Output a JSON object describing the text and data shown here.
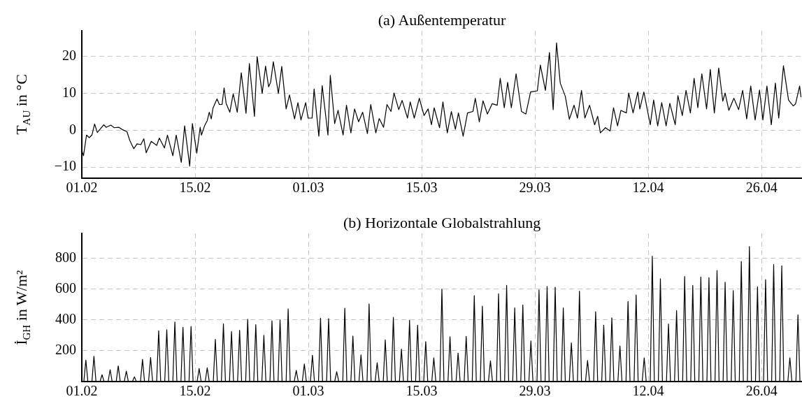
{
  "chart_data": [
    {
      "type": "line",
      "title": "(a) Außentemperatur",
      "ylabel": "T$_{AU}$ in °C",
      "grid": true,
      "xlim": [
        "--02-01",
        "--05-01"
      ],
      "xticks": [
        {
          "value": "--02-01",
          "label": "01.02"
        },
        {
          "value": "--02-15",
          "label": "15.02"
        },
        {
          "value": "--03-01",
          "label": "01.03"
        },
        {
          "value": "--03-15",
          "label": "15.03"
        },
        {
          "value": "--03-29",
          "label": "29.03"
        },
        {
          "value": "--04-12",
          "label": "12.04"
        },
        {
          "value": "--04-26",
          "label": "26.04"
        }
      ],
      "ylim": [
        -13,
        27
      ],
      "yticks": [
        {
          "value": -10,
          "label": "−10"
        },
        0,
        10,
        20
      ],
      "x": [
        "--02-01T00:00",
        "--02-01T05:00",
        "--02-01T14:00",
        "--02-01T22:00",
        "--02-02T06:00",
        "--02-02T14:00",
        "--02-02T22:00",
        "--02-03T17:00",
        "--02-04T00:00",
        "--02-04T14:00",
        "--02-05T00:00",
        "--02-05T14:00",
        "--02-06T02:00",
        "--02-06T14:00",
        "--02-06T22:00",
        "--02-07T10:00",
        "--02-07T20:00",
        "--02-08T07:00",
        "--02-08T16:00",
        "--02-08T23:00",
        "--02-09T14:00",
        "--02-10T06:00",
        "--02-10T14:00",
        "--02-11T05:00",
        "--02-11T14:00",
        "--02-12T06:00",
        "--02-12T16:00",
        "--02-13T07:00",
        "--02-13T17:00",
        "--02-14T08:00",
        "--02-14T16:00",
        "--02-15T05:00",
        "--02-15T15:00",
        "--02-15T19:00",
        "--02-16T04:00",
        "--02-16T12:00",
        "--02-16T18:00",
        "--02-17T00:00",
        "--02-17T05:00",
        "--02-17T17:00",
        "--02-18T00:00",
        "--02-18T08:00",
        "--02-18T14:00",
        "--02-18T20:00",
        "--02-19T07:00",
        "--02-19T17:00",
        "--02-20T05:00",
        "--02-20T17:00",
        "--02-21T07:00",
        "--02-21T17:00",
        "--02-22T08:00",
        "--02-22T16:00",
        "--02-23T07:00",
        "--02-23T17:00",
        "--02-24T02:00",
        "--02-24T08:00",
        "--02-24T16:00",
        "--02-25T07:00",
        "--02-25T17:00",
        "--02-26T06:00",
        "--02-26T16:00",
        "--02-27T07:00",
        "--02-27T17:00",
        "--02-28T02:00",
        "--02-28T16:00",
        "--02-28T23:00",
        "--03-01T11:00",
        "--03-01T17:00",
        "--03-02T07:00",
        "--03-02T17:00",
        "--03-03T10:00",
        "--03-03T17:00",
        "--03-04T06:00",
        "--03-04T16:00",
        "--03-05T07:00",
        "--03-05T17:00",
        "--03-06T06:00",
        "--03-06T17:00",
        "--03-07T05:00",
        "--03-07T17:00",
        "--03-08T07:00",
        "--03-08T17:00",
        "--03-09T08:00",
        "--03-09T18:00",
        "--03-10T07:00",
        "--03-10T17:00",
        "--03-11T05:00",
        "--03-11T14:00",
        "--03-12T04:00",
        "--03-12T14:00",
        "--03-13T06:00",
        "--03-13T14:00",
        "--03-14T02:00",
        "--03-14T17:00",
        "--03-15T07:00",
        "--03-15T19:00",
        "--03-16T05:00",
        "--03-16T13:00",
        "--03-17T05:00",
        "--03-17T15:00",
        "--03-18T04:00",
        "--03-18T16:00",
        "--03-19T04:00",
        "--03-19T13:00",
        "--03-20T03:00",
        "--03-20T16:00",
        "--03-21T08:00",
        "--03-21T15:00",
        "--03-22T03:00",
        "--03-22T14:00",
        "--03-23T03:00",
        "--03-23T17:00",
        "--03-24T08:00",
        "--03-24T17:00",
        "--03-25T05:00",
        "--03-25T15:00",
        "--03-26T02:00",
        "--03-26T16:00",
        "--03-27T08:00",
        "--03-27T21:00",
        "--03-28T11:00",
        "--03-29T07:00",
        "--03-29T16:00",
        "--03-30T07:00",
        "--03-30T19:00",
        "--03-31T06:00",
        "--03-31T16:00",
        "--04-01T03:00",
        "--04-01T18:00",
        "--04-02T06:00",
        "--04-02T20:00",
        "--04-03T06:00",
        "--04-03T18:00",
        "--04-04T04:00",
        "--04-04T18:00",
        "--04-05T09:00",
        "--04-05T18:00",
        "--04-06T02:00",
        "--04-06T17:00",
        "--04-07T07:00",
        "--04-07T17:00",
        "--04-08T05:00",
        "--04-08T15:00",
        "--04-09T07:00",
        "--04-09T14:00",
        "--04-10T03:00",
        "--04-10T17:00",
        "--04-10T23:00",
        "--04-11T11:00",
        "--04-12T06:00",
        "--04-12T16:00",
        "--04-13T04:00",
        "--04-13T16:00",
        "--04-14T05:00",
        "--04-14T16:00",
        "--04-15T08:00",
        "--04-15T16:00",
        "--04-16T05:00",
        "--04-16T16:00",
        "--04-17T05:00",
        "--04-17T16:00",
        "--04-18T03:00",
        "--04-18T15:00",
        "--04-19T05:00",
        "--04-19T16:00",
        "--04-20T04:00",
        "--04-20T17:00",
        "--04-21T05:00",
        "--04-21T12:00",
        "--04-21T23:00",
        "--04-22T14:00",
        "--04-23T04:00",
        "--04-23T16:00",
        "--04-24T04:00",
        "--04-24T16:00",
        "--04-25T05:00",
        "--04-25T18:00",
        "--04-26T04:00",
        "--04-26T16:00",
        "--04-27T05:00",
        "--04-27T17:00",
        "--04-28T03:00",
        "--04-28T17:00",
        "--04-29T08:00",
        "--04-29T22:00",
        "--04-30T05:00",
        "--04-30T17:00",
        "--04-30T21:00"
      ],
      "series": [
        {
          "color": "#000000",
          "values": [
            -5.5,
            -6.9,
            -1.3,
            -2,
            -1.3,
            1.7,
            -0.6,
            1.5,
            0.8,
            1.4,
            0.7,
            0.8,
            0.1,
            -0.4,
            -2.7,
            -5,
            -3.7,
            -3.9,
            -2.3,
            -6.1,
            -3,
            -4.1,
            -2.1,
            -4.8,
            -1.3,
            -6.9,
            -1.3,
            -8.7,
            1.2,
            -9.7,
            1.8,
            -6.2,
            0.8,
            -1.3,
            1.2,
            2.6,
            4.9,
            3.1,
            6,
            8.5,
            7,
            7,
            11.5,
            7.3,
            4.9,
            9.9,
            4.9,
            15.6,
            4.6,
            18.1,
            3.8,
            20,
            10,
            17.4,
            11.8,
            13,
            18.6,
            10,
            17.3,
            5.8,
            9.6,
            3.1,
            7.5,
            2.8,
            7.5,
            3.3,
            3.3,
            11.2,
            -1.6,
            12.1,
            -1.3,
            14.9,
            1.8,
            5.4,
            -1.3,
            6.8,
            -0.7,
            5.8,
            2.3,
            4.9,
            -0.9,
            7,
            -0.7,
            3.2,
            0.8,
            7,
            5.1,
            10.1,
            5.6,
            8.1,
            3.3,
            7.7,
            3.3,
            8.7,
            4,
            5.8,
            1.5,
            6.1,
            0.7,
            7.7,
            -0.7,
            5.1,
            0.3,
            4.7,
            -1.6,
            4.7,
            5.1,
            8.7,
            2.3,
            8,
            4.4,
            7.2,
            6.8,
            14.1,
            6.1,
            13,
            6.1,
            15.3,
            5.1,
            4.4,
            10.4,
            10.7,
            17.7,
            10.8,
            21.1,
            5.6,
            23.7,
            12.8,
            9.2,
            3,
            6.8,
            3.3,
            10.8,
            3.3,
            6.8,
            1.5,
            3.8,
            -0.7,
            0.7,
            -0.2,
            6.1,
            1.2,
            5.4,
            4.7,
            10.1,
            4.7,
            10.4,
            5.8,
            10.4,
            1.5,
            8.2,
            1.2,
            7.5,
            1.2,
            7.3,
            1.5,
            9.4,
            4,
            10.8,
            4.7,
            14.1,
            6.1,
            15.3,
            5.8,
            16.5,
            4.7,
            16.9,
            7.9,
            10.1,
            5.4,
            8.7,
            5.6,
            10.8,
            3.1,
            12,
            2.8,
            10.9,
            2.8,
            12,
            1.5,
            12.8,
            3.3,
            17.5,
            8.2,
            6.6,
            7.2,
            12,
            9
          ]
        }
      ]
    },
    {
      "type": "line",
      "title": "(b) Horizontale Globalstrahlung",
      "ylabel": "İ$_{GH}$ in W/m²",
      "grid": true,
      "xlim": [
        "--02-01",
        "--05-01"
      ],
      "xticks": [
        {
          "value": "--02-01",
          "label": "01.02"
        },
        {
          "value": "--02-15",
          "label": "15.02"
        },
        {
          "value": "--03-01",
          "label": "01.03"
        },
        {
          "value": "--03-15",
          "label": "15.03"
        },
        {
          "value": "--03-29",
          "label": "29.03"
        },
        {
          "value": "--04-12",
          "label": "12.04"
        },
        {
          "value": "--04-26",
          "label": "26.04"
        }
      ],
      "ylim": [
        0,
        960
      ],
      "yticks": [
        200,
        400,
        600,
        800
      ],
      "x": [
        "--02-01T06:00",
        "--02-01T12:00",
        "--02-01T18:00",
        "--02-02T06:00",
        "--02-02T12:00",
        "--02-02T18:00",
        "--02-03T06:00",
        "--02-03T12:00",
        "--02-03T18:00",
        "--02-04T06:00",
        "--02-04T12:00",
        "--02-04T18:00",
        "--02-05T06:00",
        "--02-05T12:00",
        "--02-05T18:00",
        "--02-06T06:00",
        "--02-06T12:00",
        "--02-06T18:00",
        "--02-07T06:00",
        "--02-07T12:00",
        "--02-07T18:00",
        "--02-08T06:00",
        "--02-08T12:00",
        "--02-08T18:00",
        "--02-09T06:00",
        "--02-09T12:00",
        "--02-09T18:00",
        "--02-10T06:00",
        "--02-10T12:00",
        "--02-10T18:00",
        "--02-11T06:00",
        "--02-11T12:00",
        "--02-11T18:00",
        "--02-12T06:00",
        "--02-12T12:00",
        "--02-12T18:00",
        "--02-13T06:00",
        "--02-13T12:00",
        "--02-13T18:00",
        "--02-14T06:00",
        "--02-14T12:00",
        "--02-14T18:00",
        "--02-15T06:00",
        "--02-15T12:00",
        "--02-15T18:00",
        "--02-16T06:00",
        "--02-16T12:00",
        "--02-16T18:00",
        "--02-17T06:00",
        "--02-17T12:00",
        "--02-17T18:00",
        "--02-18T06:00",
        "--02-18T12:00",
        "--02-18T18:00",
        "--02-19T06:00",
        "--02-19T12:00",
        "--02-19T18:00",
        "--02-20T06:00",
        "--02-20T12:00",
        "--02-20T18:00",
        "--02-21T06:00",
        "--02-21T12:00",
        "--02-21T18:00",
        "--02-22T06:00",
        "--02-22T12:00",
        "--02-22T18:00",
        "--02-23T06:00",
        "--02-23T12:00",
        "--02-23T18:00",
        "--02-24T06:00",
        "--02-24T12:00",
        "--02-24T18:00",
        "--02-25T06:00",
        "--02-25T12:00",
        "--02-25T18:00",
        "--02-26T06:00",
        "--02-26T12:00",
        "--02-26T18:00",
        "--02-27T06:00",
        "--02-27T12:00",
        "--02-27T18:00",
        "--02-28T06:00",
        "--02-28T12:00",
        "--02-28T18:00",
        "--03-01T06:00",
        "--03-01T12:00",
        "--03-01T18:00",
        "--03-02T06:00",
        "--03-02T12:00",
        "--03-02T18:00",
        "--03-03T06:00",
        "--03-03T12:00",
        "--03-03T18:00",
        "--03-04T06:00",
        "--03-04T12:00",
        "--03-04T18:00",
        "--03-05T06:00",
        "--03-05T12:00",
        "--03-05T18:00",
        "--03-06T06:00",
        "--03-06T12:00",
        "--03-06T18:00",
        "--03-07T06:00",
        "--03-07T12:00",
        "--03-07T18:00",
        "--03-08T06:00",
        "--03-08T12:00",
        "--03-08T18:00",
        "--03-09T06:00",
        "--03-09T12:00",
        "--03-09T18:00",
        "--03-10T06:00",
        "--03-10T12:00",
        "--03-10T18:00",
        "--03-11T06:00",
        "--03-11T12:00",
        "--03-11T18:00",
        "--03-12T06:00",
        "--03-12T12:00",
        "--03-12T18:00",
        "--03-13T06:00",
        "--03-13T12:00",
        "--03-13T18:00",
        "--03-14T06:00",
        "--03-14T12:00",
        "--03-14T18:00",
        "--03-15T06:00",
        "--03-15T12:00",
        "--03-15T18:00",
        "--03-16T06:00",
        "--03-16T12:00",
        "--03-16T18:00",
        "--03-17T06:00",
        "--03-17T12:00",
        "--03-17T18:00",
        "--03-18T06:00",
        "--03-18T12:00",
        "--03-18T18:00",
        "--03-19T06:00",
        "--03-19T12:00",
        "--03-19T18:00",
        "--03-20T06:00",
        "--03-20T12:00",
        "--03-20T18:00",
        "--03-21T06:00",
        "--03-21T12:00",
        "--03-21T18:00",
        "--03-22T06:00",
        "--03-22T12:00",
        "--03-22T18:00",
        "--03-23T06:00",
        "--03-23T12:00",
        "--03-23T18:00",
        "--03-24T06:00",
        "--03-24T12:00",
        "--03-24T18:00",
        "--03-25T06:00",
        "--03-25T12:00",
        "--03-25T18:00",
        "--03-26T06:00",
        "--03-26T12:00",
        "--03-26T18:00",
        "--03-27T06:00",
        "--03-27T12:00",
        "--03-27T18:00",
        "--03-28T06:00",
        "--03-28T12:00",
        "--03-28T18:00",
        "--03-29T06:00",
        "--03-29T12:00",
        "--03-29T18:00",
        "--03-30T06:00",
        "--03-30T12:00",
        "--03-30T18:00",
        "--03-31T06:00",
        "--03-31T12:00",
        "--03-31T18:00",
        "--04-01T06:00",
        "--04-01T12:00",
        "--04-01T18:00",
        "--04-02T06:00",
        "--04-02T12:00",
        "--04-02T18:00",
        "--04-03T06:00",
        "--04-03T12:00",
        "--04-03T18:00",
        "--04-04T06:00",
        "--04-04T12:00",
        "--04-04T18:00",
        "--04-05T06:00",
        "--04-05T12:00",
        "--04-05T18:00",
        "--04-06T06:00",
        "--04-06T12:00",
        "--04-06T18:00",
        "--04-07T06:00",
        "--04-07T12:00",
        "--04-07T18:00",
        "--04-08T06:00",
        "--04-08T12:00",
        "--04-08T18:00",
        "--04-09T06:00",
        "--04-09T12:00",
        "--04-09T18:00",
        "--04-10T06:00",
        "--04-10T12:00",
        "--04-10T18:00",
        "--04-11T06:00",
        "--04-11T12:00",
        "--04-11T18:00",
        "--04-12T06:00",
        "--04-12T12:00",
        "--04-12T18:00",
        "--04-13T06:00",
        "--04-13T12:00",
        "--04-13T18:00",
        "--04-14T06:00",
        "--04-14T12:00",
        "--04-14T18:00",
        "--04-15T06:00",
        "--04-15T12:00",
        "--04-15T18:00",
        "--04-16T06:00",
        "--04-16T12:00",
        "--04-16T18:00",
        "--04-17T06:00",
        "--04-17T12:00",
        "--04-17T18:00",
        "--04-18T06:00",
        "--04-18T12:00",
        "--04-18T18:00",
        "--04-19T06:00",
        "--04-19T12:00",
        "--04-19T18:00",
        "--04-20T06:00",
        "--04-20T12:00",
        "--04-20T18:00",
        "--04-21T06:00",
        "--04-21T12:00",
        "--04-21T18:00",
        "--04-22T06:00",
        "--04-22T12:00",
        "--04-22T18:00",
        "--04-23T06:00",
        "--04-23T12:00",
        "--04-23T18:00",
        "--04-24T06:00",
        "--04-24T12:00",
        "--04-24T18:00",
        "--04-25T06:00",
        "--04-25T12:00",
        "--04-25T18:00",
        "--04-26T06:00",
        "--04-26T12:00",
        "--04-26T18:00",
        "--04-27T06:00",
        "--04-27T12:00",
        "--04-27T18:00",
        "--04-28T06:00",
        "--04-28T12:00",
        "--04-28T18:00",
        "--04-29T06:00",
        "--04-29T12:00",
        "--04-29T18:00",
        "--04-30T06:00",
        "--04-30T12:00",
        "--04-30T18:00"
      ],
      "series": [
        {
          "color": "#000000",
          "values": [
            0,
            139,
            0,
            0,
            164,
            0,
            0,
            44,
            0,
            0,
            77,
            0,
            0,
            101,
            0,
            0,
            67,
            0,
            0,
            30,
            0,
            0,
            143,
            0,
            0,
            156,
            0,
            0,
            329,
            0,
            0,
            336,
            0,
            0,
            386,
            0,
            0,
            352,
            0,
            0,
            357,
            0,
            0,
            84,
            0,
            0,
            89,
            0,
            0,
            273,
            0,
            0,
            374,
            0,
            0,
            324,
            0,
            0,
            332,
            0,
            0,
            404,
            0,
            0,
            369,
            0,
            0,
            299,
            0,
            0,
            394,
            0,
            0,
            399,
            0,
            0,
            470,
            0,
            0,
            72,
            0,
            0,
            114,
            0,
            0,
            171,
            0,
            0,
            411,
            0,
            0,
            408,
            0,
            0,
            64,
            0,
            0,
            475,
            0,
            0,
            295,
            0,
            0,
            173,
            0,
            0,
            503,
            0,
            0,
            122,
            0,
            0,
            270,
            0,
            0,
            416,
            0,
            0,
            210,
            0,
            0,
            397,
            0,
            0,
            365,
            0,
            0,
            259,
            0,
            0,
            154,
            0,
            0,
            599,
            0,
            0,
            290,
            0,
            0,
            184,
            0,
            0,
            293,
            0,
            0,
            557,
            0,
            0,
            489,
            0,
            0,
            134,
            0,
            0,
            569,
            0,
            0,
            623,
            0,
            0,
            477,
            0,
            0,
            497,
            0,
            0,
            263,
            0,
            0,
            594,
            0,
            0,
            616,
            0,
            0,
            611,
            0,
            0,
            477,
            0,
            0,
            251,
            0,
            0,
            586,
            0,
            0,
            137,
            0,
            0,
            452,
            0,
            0,
            365,
            0,
            0,
            413,
            0,
            0,
            231,
            0,
            0,
            519,
            0,
            0,
            561,
            0,
            0,
            154,
            0,
            0,
            812,
            0,
            0,
            666,
            0,
            0,
            373,
            0,
            0,
            460,
            0,
            0,
            681,
            0,
            0,
            623,
            0,
            0,
            678,
            0,
            0,
            673,
            0,
            0,
            720,
            0,
            0,
            644,
            0,
            0,
            589,
            0,
            0,
            778,
            0,
            0,
            875,
            0,
            0,
            614,
            0,
            0,
            661,
            0,
            0,
            758,
            0,
            0,
            750,
            0,
            0,
            154,
            0,
            0,
            432,
            0
          ]
        }
      ]
    }
  ]
}
